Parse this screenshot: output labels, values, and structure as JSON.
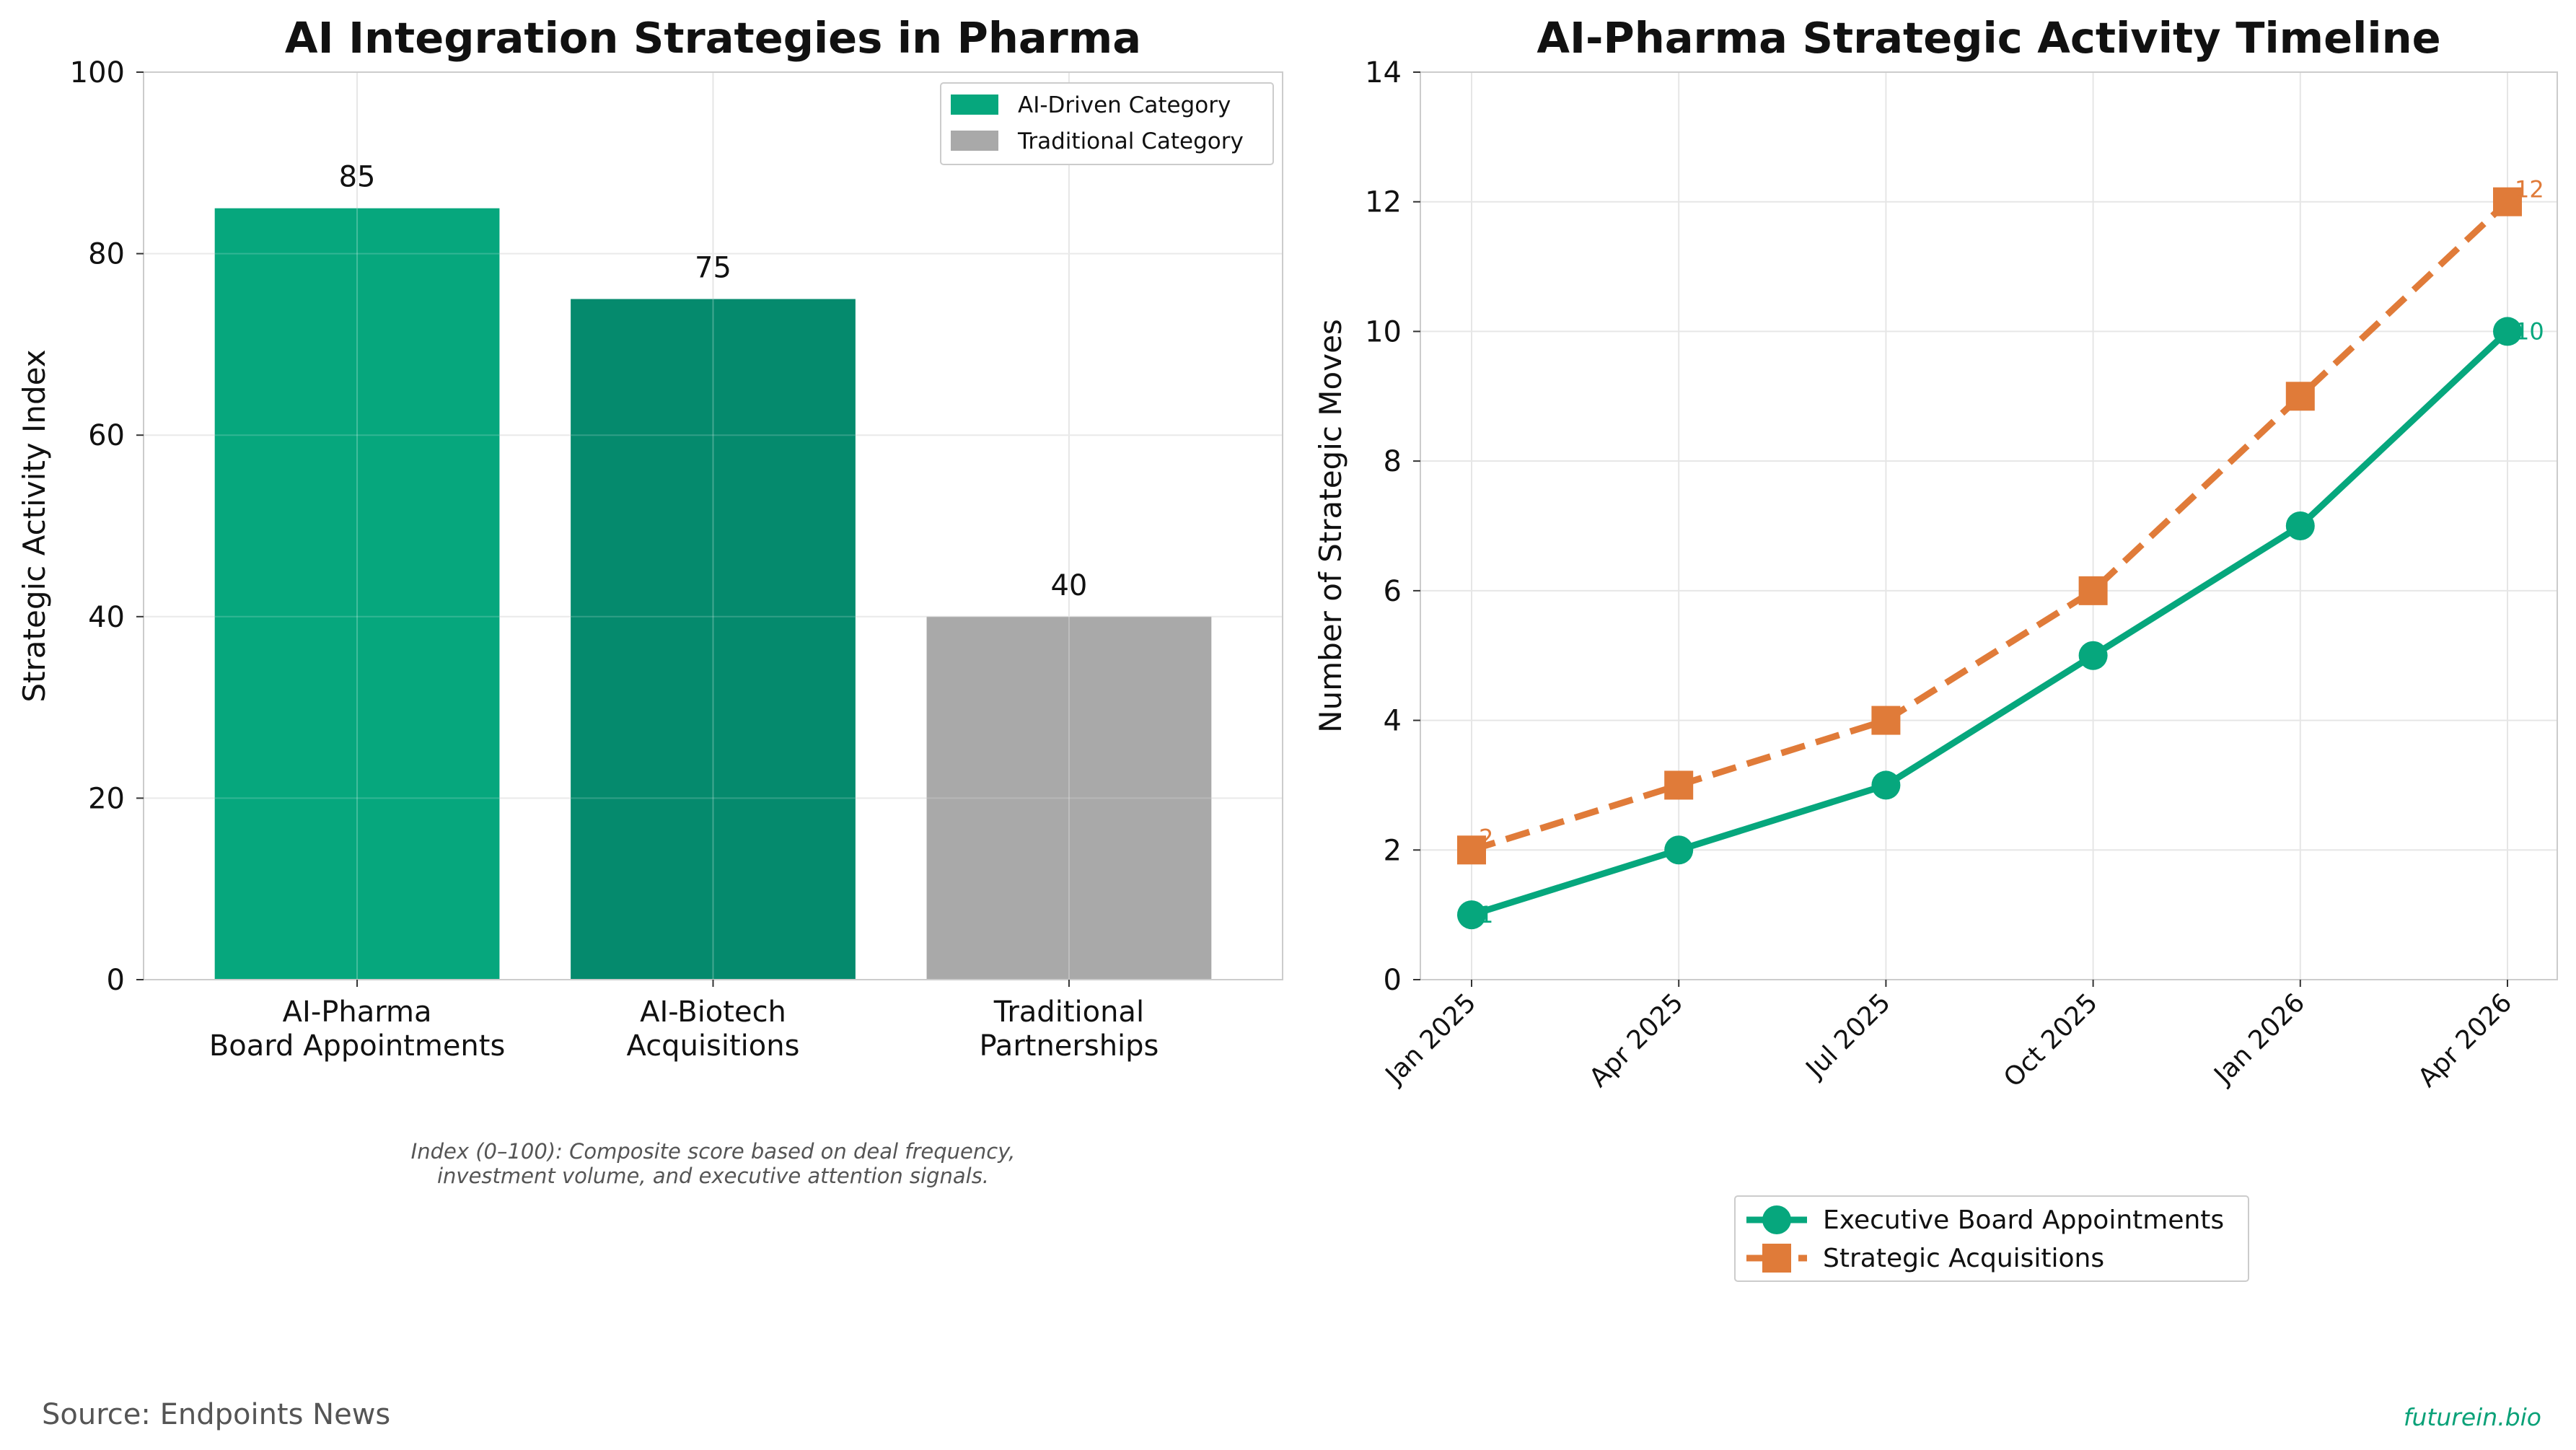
{
  "footer": {
    "source": "Source: Endpoints News",
    "brand": "futurein.bio"
  },
  "chart_data": [
    {
      "type": "bar",
      "title": "AI Integration Strategies in Pharma",
      "xlabel": "",
      "ylabel": "Strategic Activity Index",
      "ylim": [
        0,
        100
      ],
      "yticks": [
        0,
        20,
        40,
        60,
        80,
        100
      ],
      "grid": true,
      "categories": [
        [
          "AI-Pharma",
          "Board Appointments"
        ],
        [
          "AI-Biotech",
          "Acquisitions"
        ],
        [
          "Traditional",
          "Partnerships"
        ]
      ],
      "values": [
        85,
        75,
        40
      ],
      "value_labels": [
        "85",
        "75",
        "40"
      ],
      "bar_colors": [
        "#06a77d",
        "#058a6d",
        "#a9a9a9"
      ],
      "legend": {
        "placement": "top-right",
        "entries": [
          {
            "label": "AI-Driven Category",
            "color": "#06a77d"
          },
          {
            "label": "Traditional Category",
            "color": "#a9a9a9"
          }
        ]
      },
      "note": [
        "Index (0–100): Composite score based on deal frequency,",
        "investment volume, and executive attention signals."
      ]
    },
    {
      "type": "line",
      "title": "AI-Pharma Strategic Activity Timeline",
      "xlabel": "",
      "ylabel": "Number of Strategic Moves",
      "ylim": [
        0,
        14
      ],
      "yticks": [
        0,
        2,
        4,
        6,
        8,
        10,
        12,
        14
      ],
      "grid": true,
      "x": [
        "Jan 2025",
        "Apr 2025",
        "Jul 2025",
        "Oct 2025",
        "Jan 2026",
        "Apr 2026"
      ],
      "series": [
        {
          "name": "Executive Board Appointments",
          "values": [
            1,
            2,
            3,
            5,
            7,
            10
          ],
          "color": "#06a77d",
          "marker": "circle",
          "style": "solid",
          "labels": [
            "1",
            "10"
          ]
        },
        {
          "name": "Strategic Acquisitions",
          "values": [
            2,
            3,
            4,
            6,
            9,
            12
          ],
          "color": "#e07b39",
          "marker": "square",
          "style": "dashed",
          "labels": [
            "2",
            "12"
          ]
        }
      ],
      "legend": {
        "placement": "bottom-center"
      }
    }
  ]
}
